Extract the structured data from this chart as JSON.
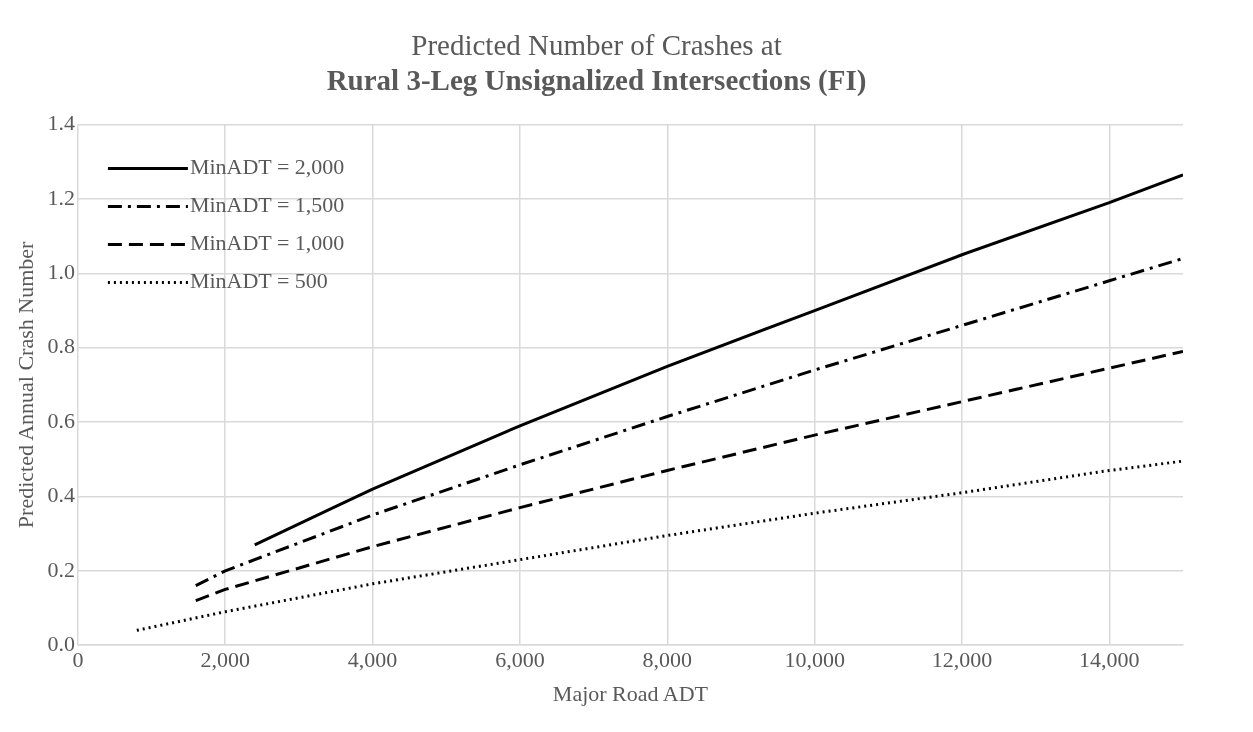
{
  "chart_data": {
    "type": "line",
    "title": "Predicted Number of Crashes at",
    "subtitle": "Rural 3-Leg Unsignalized Intersections (FI)",
    "xlabel": "Major Road ADT",
    "ylabel": "Predicted Annual Crash Number",
    "xlim": [
      0,
      15000
    ],
    "xticks": [
      {
        "value": 0,
        "label": "0"
      },
      {
        "value": 2000,
        "label": "2,000"
      },
      {
        "value": 4000,
        "label": "4,000"
      },
      {
        "value": 6000,
        "label": "6,000"
      },
      {
        "value": 8000,
        "label": "8,000"
      },
      {
        "value": 10000,
        "label": "10,000"
      },
      {
        "value": 12000,
        "label": "12,000"
      },
      {
        "value": 14000,
        "label": "14,000"
      }
    ],
    "ylim": [
      0,
      1.4
    ],
    "yticks": [
      {
        "value": 0,
        "label": "0.0"
      },
      {
        "value": 0.2,
        "label": "0.2"
      },
      {
        "value": 0.4,
        "label": "0.4"
      },
      {
        "value": 0.6,
        "label": "0.6"
      },
      {
        "value": 0.8,
        "label": "0.8"
      },
      {
        "value": 1.0,
        "label": "1.0"
      },
      {
        "value": 1.2,
        "label": "1.2"
      },
      {
        "value": 1.4,
        "label": "1.4"
      }
    ],
    "grid": true,
    "legend": "top left",
    "marker": "none",
    "series": [
      {
        "name": "MinADT = 2,000",
        "color": "#000000",
        "line_style": "solid",
        "x": [
          2400,
          4000,
          6000,
          8000,
          10000,
          12000,
          14000,
          15000
        ],
        "values": [
          0.27,
          0.42,
          0.59,
          0.75,
          0.9,
          1.05,
          1.19,
          1.265
        ]
      },
      {
        "name": "MinADT = 1,500",
        "color": "#000000",
        "line_style": "dashdot",
        "x": [
          1600,
          2000,
          4000,
          6000,
          8000,
          10000,
          12000,
          14000,
          15000
        ],
        "values": [
          0.16,
          0.2,
          0.35,
          0.485,
          0.615,
          0.74,
          0.86,
          0.98,
          1.04
        ]
      },
      {
        "name": "MinADT = 1,000",
        "color": "#000000",
        "line_style": "dashed",
        "x": [
          1600,
          2000,
          4000,
          6000,
          8000,
          10000,
          12000,
          14000,
          15000
        ],
        "values": [
          0.12,
          0.15,
          0.265,
          0.37,
          0.47,
          0.565,
          0.655,
          0.745,
          0.79
        ]
      },
      {
        "name": "MinADT = 500",
        "color": "#000000",
        "line_style": "dotted",
        "x": [
          800,
          2000,
          4000,
          6000,
          8000,
          10000,
          12000,
          14000,
          15000
        ],
        "values": [
          0.04,
          0.09,
          0.165,
          0.23,
          0.295,
          0.355,
          0.41,
          0.47,
          0.495
        ]
      }
    ]
  }
}
